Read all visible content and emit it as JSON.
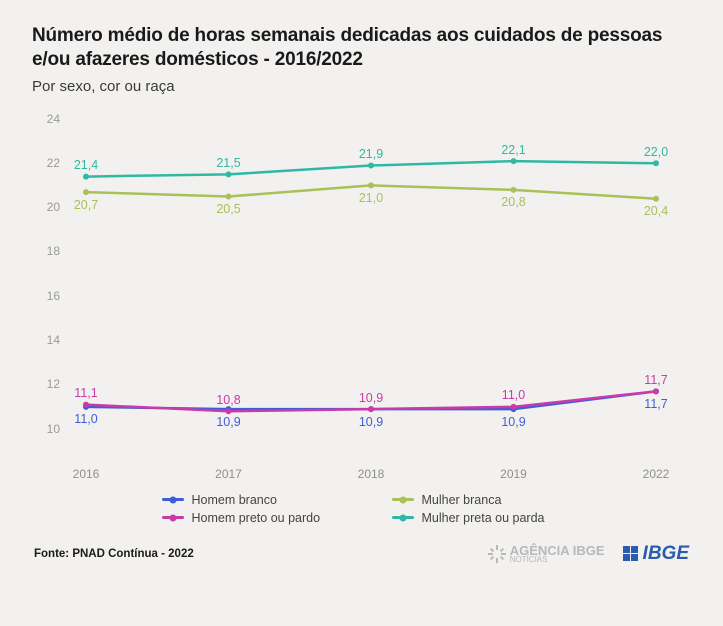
{
  "title": "Número médio de horas semanais dedicadas aos cuidados de pessoas e/ou afazeres domésticos - 2016/2022",
  "subtitle": "Por sexo, cor ou raça",
  "source": "Fonte: PNAD Contínua - 2022",
  "logos": {
    "agencia": "AGÊNCIA IBGE",
    "agencia_sub": "NOTÍCIAS",
    "ibge": "IBGE"
  },
  "chart": {
    "type": "line",
    "background_color": "#f2f1ef",
    "grid": false,
    "categories": [
      "2016",
      "2017",
      "2018",
      "2019",
      "2022"
    ],
    "ylim": [
      10,
      24
    ],
    "yticks": [
      10,
      12,
      14,
      16,
      18,
      20,
      22,
      24
    ],
    "ytick_color": "#9a9a9a",
    "ytick_fontsize": 12,
    "xtick_color": "#8f8f8f",
    "xtick_fontsize": 12,
    "line_width": 2.5,
    "marker_size": 6,
    "label_fontsize": 12.5,
    "series": [
      {
        "name": "Homem branco",
        "color": "#3e5ed8",
        "values": [
          11.0,
          10.9,
          10.9,
          10.9,
          11.7
        ],
        "labels": [
          "11,0",
          "10,9",
          "10,9",
          "10,9",
          "11,7"
        ],
        "label_pos": [
          "below",
          "below",
          "below",
          "below",
          "below"
        ]
      },
      {
        "name": "Homem preto ou pardo",
        "color": "#c93ba8",
        "values": [
          11.1,
          10.8,
          10.9,
          11.0,
          11.7
        ],
        "labels": [
          "11,1",
          "10,8",
          "10,9",
          "11,0",
          "11,7"
        ],
        "label_pos": [
          "above",
          "above",
          "above",
          "above",
          "above"
        ]
      },
      {
        "name": "Mulher branca",
        "color": "#a8c159",
        "values": [
          20.7,
          20.5,
          21.0,
          20.8,
          20.4
        ],
        "labels": [
          "20,7",
          "20,5",
          "21,0",
          "20,8",
          "20,4"
        ],
        "label_pos": [
          "below",
          "below",
          "below",
          "below",
          "below"
        ]
      },
      {
        "name": "Mulher preta ou parda",
        "color": "#2fb9a5",
        "values": [
          21.4,
          21.5,
          21.9,
          22.1,
          22.0
        ],
        "labels": [
          "21,4",
          "21,5",
          "21,9",
          "22,1",
          "22,0"
        ],
        "label_pos": [
          "above",
          "above",
          "above",
          "above",
          "above"
        ]
      }
    ],
    "legend_layout": [
      [
        0,
        2
      ],
      [
        1,
        3
      ]
    ]
  }
}
